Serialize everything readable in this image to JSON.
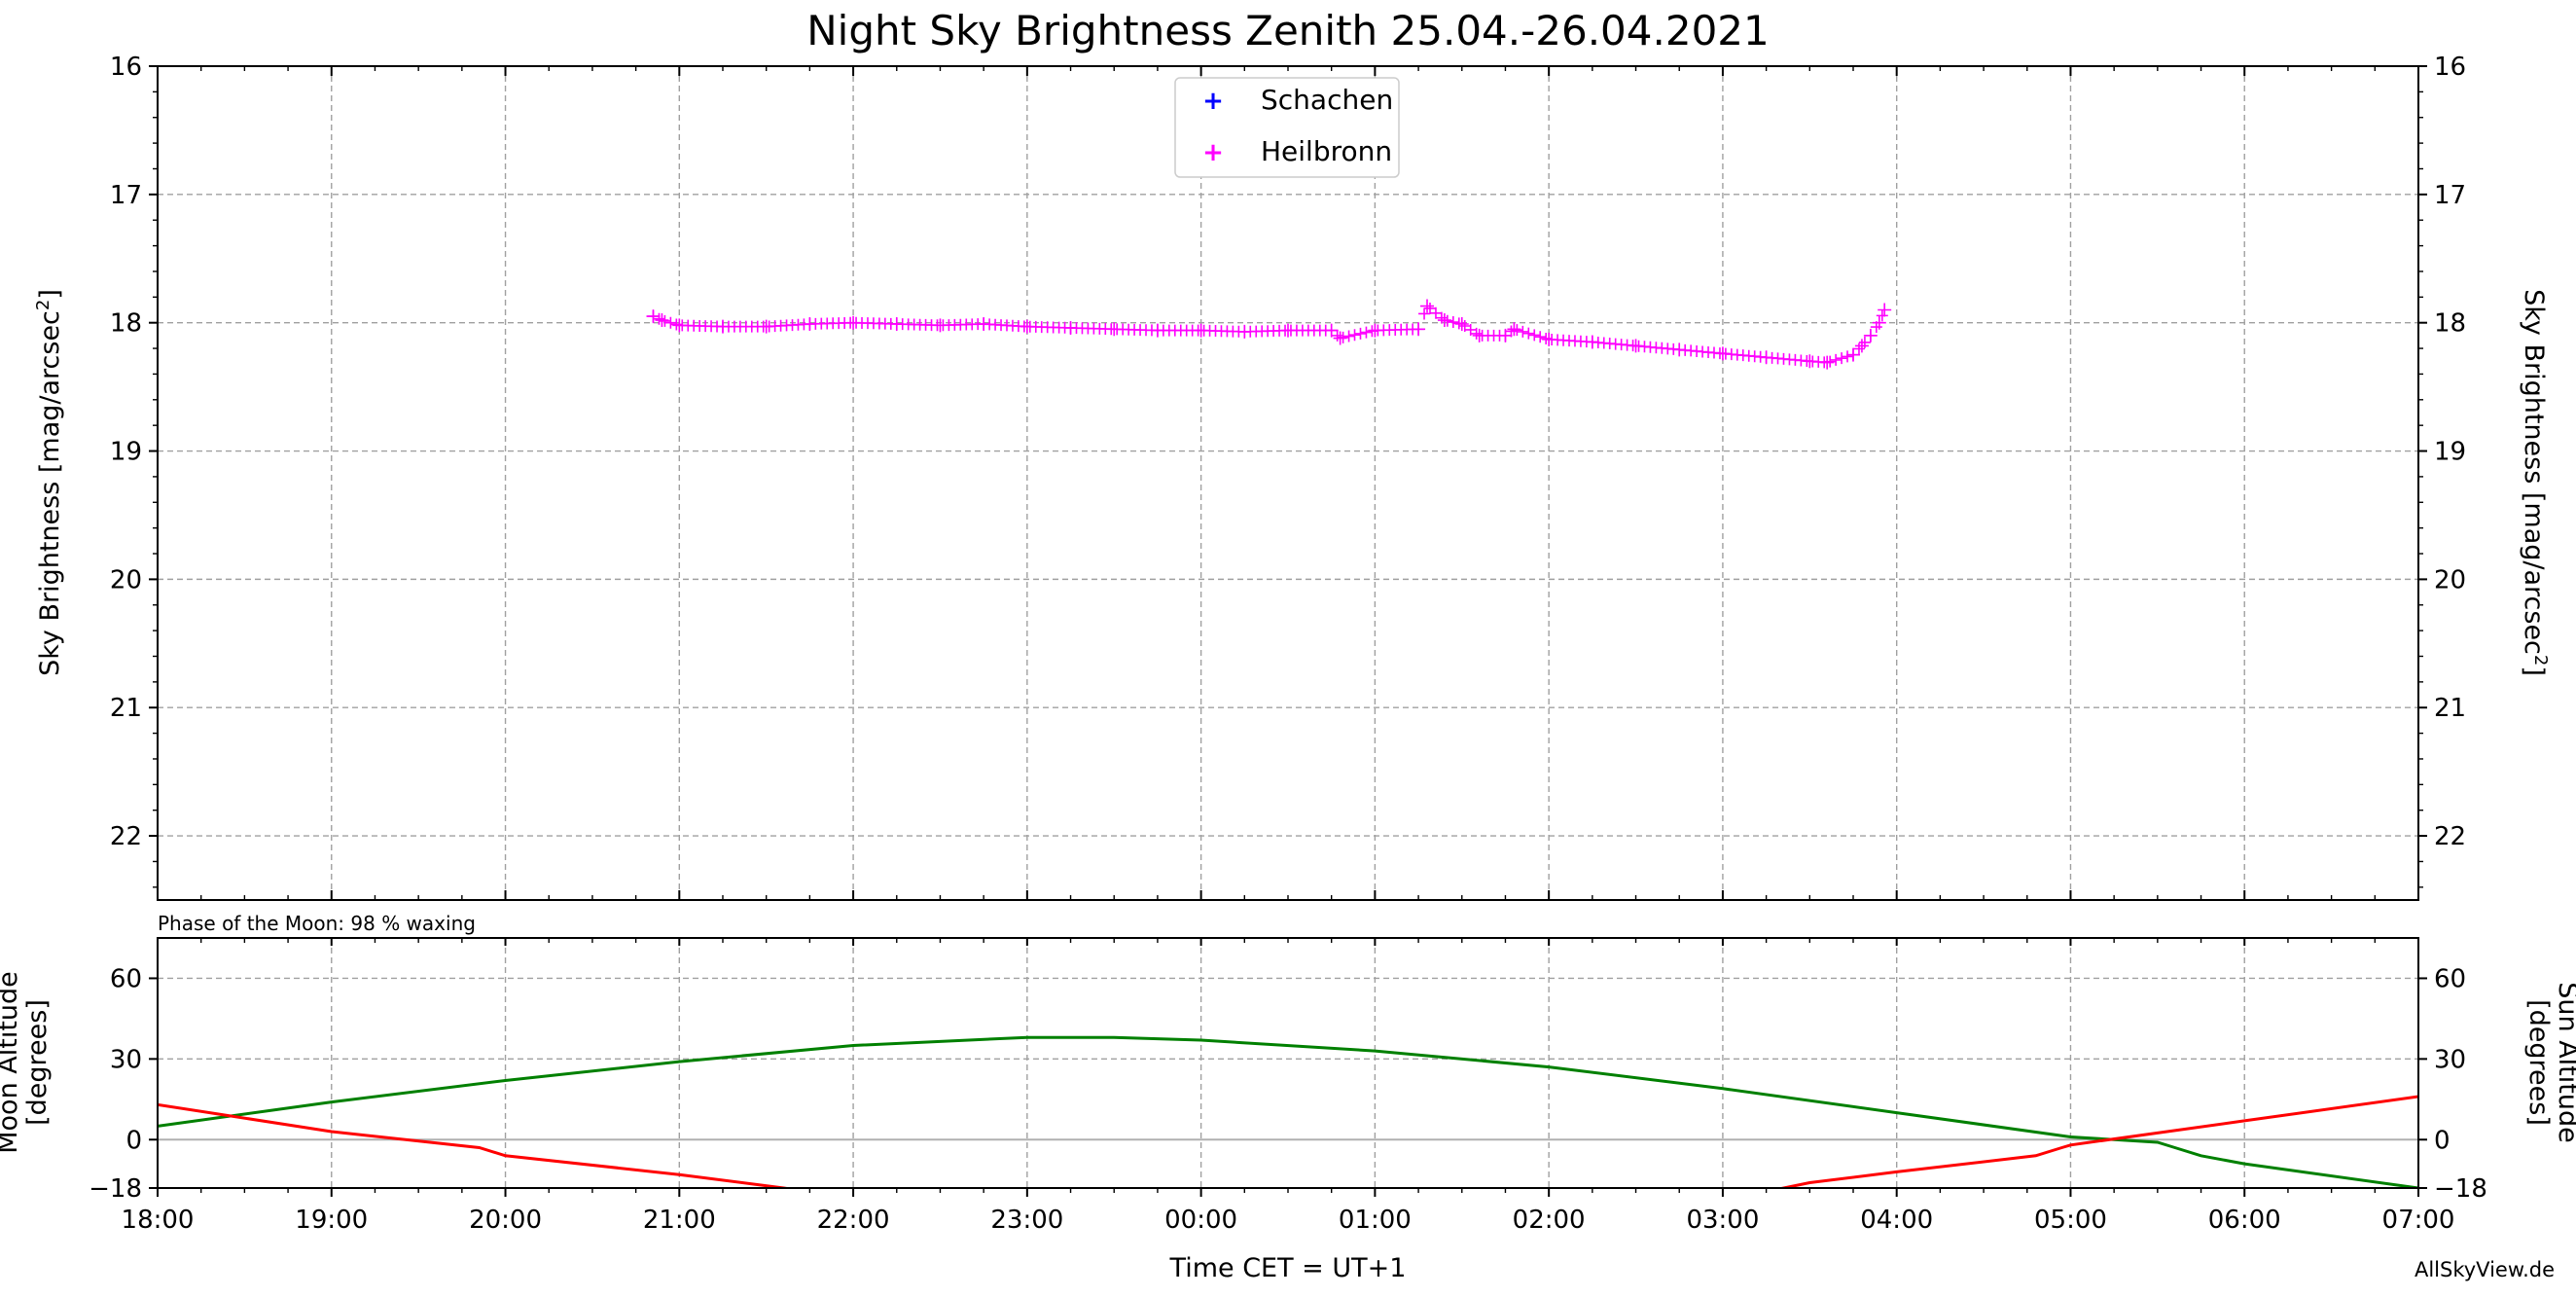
{
  "chart_data": [
    {
      "type": "scatter",
      "title": "Night Sky Brightness Zenith 25.04.-26.04.2021",
      "xlabel": "Time CET = UT+1",
      "ylabel_left": "Sky Brightness [mag/arcsec",
      "ylabel_right": "Sky Brightness [mag/arcsec",
      "ylabel_superscript": "2",
      "ylabel_close": "]",
      "ylim": [
        22.5,
        16
      ],
      "yticks": [
        "16",
        "17",
        "18",
        "19",
        "20",
        "21",
        "22"
      ],
      "xlim_hours": [
        18,
        31
      ],
      "grid": true,
      "legend_position": "top-center",
      "series": [
        {
          "name": "Schachen",
          "color": "#0000ff",
          "marker": "+",
          "x": [],
          "y": []
        },
        {
          "name": "Heilbronn",
          "color": "#ff00ff",
          "marker": "+",
          "x": [
            20.85,
            20.9,
            21.0,
            21.25,
            21.5,
            21.75,
            22.0,
            22.25,
            22.5,
            22.75,
            23.0,
            23.25,
            23.5,
            23.75,
            24.0,
            24.25,
            24.5,
            24.75,
            24.8,
            25.0,
            25.25,
            25.3,
            25.4,
            25.5,
            25.6,
            25.75,
            25.8,
            26.0,
            26.25,
            26.5,
            26.75,
            27.0,
            27.25,
            27.5,
            27.6,
            27.75,
            27.8,
            27.85,
            27.9,
            27.93
          ],
          "y": [
            17.95,
            17.98,
            18.02,
            18.03,
            18.03,
            18.01,
            18.0,
            18.01,
            18.02,
            18.01,
            18.03,
            18.04,
            18.05,
            18.06,
            18.06,
            18.07,
            18.06,
            18.06,
            18.12,
            18.06,
            18.05,
            17.87,
            17.98,
            18.01,
            18.1,
            18.1,
            18.05,
            18.13,
            18.15,
            18.18,
            18.21,
            18.24,
            18.27,
            18.3,
            18.31,
            18.25,
            18.18,
            18.1,
            18.0,
            17.9
          ]
        }
      ]
    },
    {
      "type": "line",
      "annotation": "Phase of the Moon: 98 % waxing",
      "xlabel": "Time CET = UT+1",
      "ylabel_left": "Moon Altitude\n[degrees]",
      "ylabel_right": "Sun Altitude\n[degrees]",
      "ylim": [
        -18,
        75
      ],
      "yticks": [
        "60",
        "30",
        "0",
        "−18"
      ],
      "xticks": [
        "18:00",
        "19:00",
        "20:00",
        "21:00",
        "22:00",
        "23:00",
        "00:00",
        "01:00",
        "02:00",
        "03:00",
        "04:00",
        "05:00",
        "06:00",
        "07:00"
      ],
      "xlim_hours": [
        18,
        31
      ],
      "grid": true,
      "series": [
        {
          "name": "Moon Altitude",
          "color": "#008000",
          "x": [
            18,
            19,
            20,
            21,
            22,
            23,
            23.5,
            24,
            25,
            26,
            27,
            28,
            29,
            29.5,
            29.6,
            29.75,
            30,
            31
          ],
          "y": [
            5,
            14,
            22,
            29,
            35,
            38,
            38,
            37,
            33,
            27,
            19,
            10,
            1,
            -1,
            -3,
            -6,
            -9,
            -18
          ]
        },
        {
          "name": "Sun Altitude",
          "color": "#ff0000",
          "x": [
            18,
            19,
            19.85,
            20.0,
            21,
            21.6,
            21.8,
            27.2,
            27.5,
            28,
            28.8,
            28.95,
            29,
            30,
            31
          ],
          "y": [
            13,
            3,
            -3,
            -6,
            -13,
            -18,
            -20,
            -20,
            -16,
            -12,
            -6,
            -3,
            -2,
            7,
            16
          ]
        }
      ]
    }
  ],
  "credit": "AllSkyView.de",
  "colors": {
    "moon_axis": "#008000",
    "sun_axis": "#ff0000",
    "grid": "#a0a0a0"
  }
}
